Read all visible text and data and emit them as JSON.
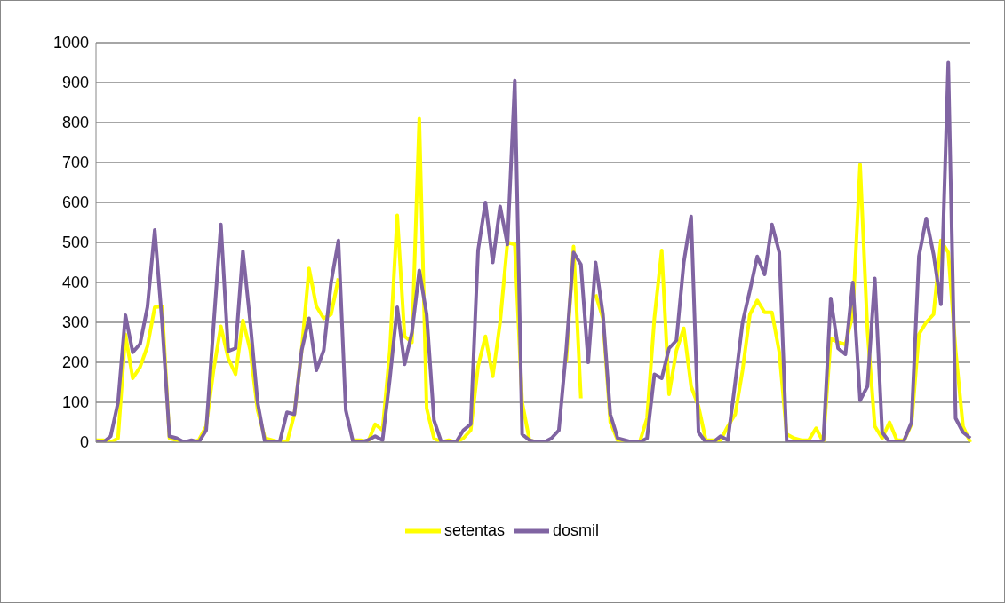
{
  "chart_data": {
    "type": "line",
    "categories": [
      null,
      null,
      null,
      null,
      null,
      null,
      null,
      null,
      null,
      null,
      null,
      null,
      null,
      null,
      null,
      null,
      null,
      null,
      null,
      null,
      null,
      null,
      null,
      null,
      null,
      null,
      null,
      null,
      null,
      null,
      null,
      null,
      null,
      null,
      null,
      null,
      null,
      null,
      null,
      null,
      null,
      null,
      null,
      null,
      null,
      null,
      null,
      null,
      null,
      null,
      null,
      null,
      null,
      null,
      null,
      null,
      null,
      null,
      null,
      null,
      null,
      null,
      null,
      null,
      null,
      null,
      null,
      null,
      null,
      null,
      null,
      null,
      null,
      null,
      null,
      null,
      null,
      null,
      null,
      null,
      null,
      null,
      null,
      null,
      null,
      null,
      null,
      null,
      null,
      null,
      null,
      null,
      null,
      null,
      null,
      null,
      null,
      null,
      null,
      null,
      null,
      null,
      null,
      null,
      null,
      null,
      null,
      null,
      null,
      null,
      null,
      null,
      null,
      null,
      null,
      null,
      null,
      null,
      null,
      null
    ],
    "series": [
      {
        "name": "setentas",
        "color": "#ffff00",
        "values": [
          5,
          5,
          0,
          10,
          270,
          160,
          188,
          240,
          338,
          340,
          10,
          5,
          0,
          0,
          5,
          40,
          180,
          290,
          210,
          170,
          305,
          230,
          80,
          10,
          5,
          0,
          0,
          70,
          230,
          435,
          340,
          310,
          320,
          410,
          null,
          5,
          5,
          0,
          45,
          30,
          231,
          568,
          265,
          250,
          810,
          85,
          10,
          0,
          5,
          0,
          10,
          30,
          190,
          265,
          165,
          300,
          500,
          495,
          100,
          5,
          0,
          0,
          null,
          null,
          200,
          490,
          110,
          null,
          370,
          310,
          50,
          5,
          0,
          0,
          0,
          60,
          310,
          480,
          120,
          230,
          285,
          140,
          90,
          5,
          5,
          5,
          40,
          70,
          180,
          320,
          355,
          325,
          325,
          225,
          20,
          10,
          5,
          5,
          35,
          0,
          260,
          250,
          245,
          320,
          695,
          280,
          40,
          10,
          50,
          5,
          5,
          45,
          270,
          300,
          320,
          505,
          475,
          230,
          40,
          0
        ]
      },
      {
        "name": "dosmil",
        "color": "#8064a2",
        "values": [
          0,
          0,
          15,
          100,
          318,
          225,
          246,
          338,
          531,
          300,
          15,
          10,
          0,
          5,
          0,
          30,
          290,
          545,
          228,
          235,
          478,
          300,
          100,
          0,
          0,
          0,
          75,
          70,
          230,
          310,
          180,
          230,
          400,
          505,
          80,
          0,
          0,
          5,
          15,
          5,
          160,
          338,
          195,
          275,
          430,
          320,
          55,
          0,
          0,
          0,
          30,
          45,
          480,
          600,
          450,
          590,
          495,
          905,
          20,
          5,
          0,
          0,
          10,
          30,
          230,
          475,
          445,
          200,
          450,
          320,
          70,
          10,
          5,
          0,
          0,
          10,
          170,
          160,
          235,
          255,
          450,
          565,
          25,
          0,
          0,
          15,
          5,
          150,
          300,
          380,
          465,
          420,
          545,
          475,
          0,
          0,
          0,
          0,
          0,
          5,
          360,
          235,
          220,
          400,
          105,
          140,
          410,
          25,
          0,
          0,
          5,
          50,
          465,
          560,
          470,
          345,
          950,
          60,
          25,
          10
        ]
      }
    ],
    "ylim": [
      0,
      1000
    ],
    "yticks": [
      0,
      100,
      200,
      300,
      400,
      500,
      600,
      700,
      800,
      900,
      1000
    ],
    "grid": "y",
    "legend": "bottom",
    "tick_labels": "y",
    "marker": "none",
    "line_style": "solid"
  }
}
